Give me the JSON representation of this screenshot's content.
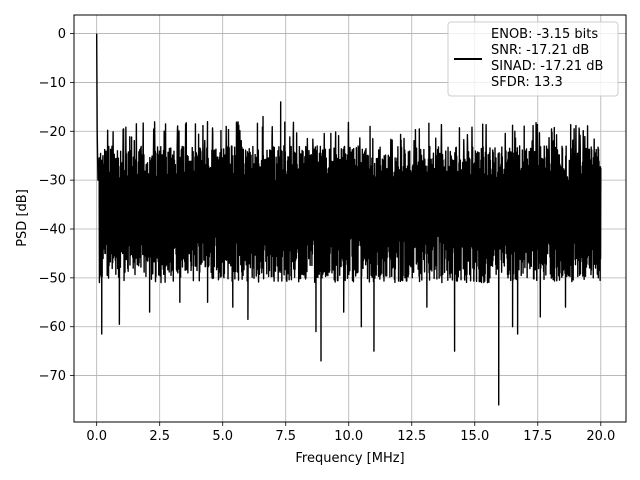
{
  "chart_data": {
    "type": "line",
    "xlabel": "Frequency [MHz]",
    "ylabel": "PSD [dB]",
    "xlim": [
      -0.9,
      21.0
    ],
    "ylim": [
      -79.5,
      3.8
    ],
    "xticks": [
      0.0,
      2.5,
      5.0,
      7.5,
      10.0,
      12.5,
      15.0,
      17.5,
      20.0
    ],
    "xtick_labels": [
      "0.0",
      "2.5",
      "5.0",
      "7.5",
      "10.0",
      "12.5",
      "15.0",
      "17.5",
      "20.0"
    ],
    "yticks": [
      0,
      -10,
      -20,
      -30,
      -40,
      -50,
      -60,
      -70
    ],
    "ytick_labels": [
      "0",
      "−10",
      "−20",
      "−30",
      "−40",
      "−50",
      "−60",
      "−70"
    ],
    "grid": true,
    "legend_position": "top-right",
    "legend_lines": [
      "ENOB: -3.15 bits",
      "SNR: -17.21 dB",
      "SINAD: -17.21 dB",
      "SFDR: 13.3"
    ],
    "series_color": "#000000",
    "noise_floor_approx": [
      -45,
      -20
    ],
    "series": [
      {
        "x": [
          0.0,
          0.02,
          0.05,
          0.1,
          0.2,
          0.25,
          0.5,
          0.9,
          2.1,
          3.3,
          4.4,
          5.4,
          6.0,
          6.6,
          7.3,
          8.3,
          8.7,
          8.9,
          9.8,
          10.5,
          11.0,
          13.1,
          14.2,
          15.6,
          15.95,
          16.5,
          16.7,
          17.6,
          18.6,
          19.9,
          20.0
        ],
        "values": [
          0.0,
          -20,
          -30,
          -35,
          -61.5,
          -25,
          -40,
          -59.5,
          -57,
          -55,
          -55,
          -56,
          -58.5,
          -17,
          -14,
          -50,
          -61,
          -67,
          -57,
          -60,
          -65,
          -56,
          -65,
          -50,
          -76,
          -60,
          -61.5,
          -58,
          -56,
          -50,
          -32
        ]
      }
    ]
  }
}
